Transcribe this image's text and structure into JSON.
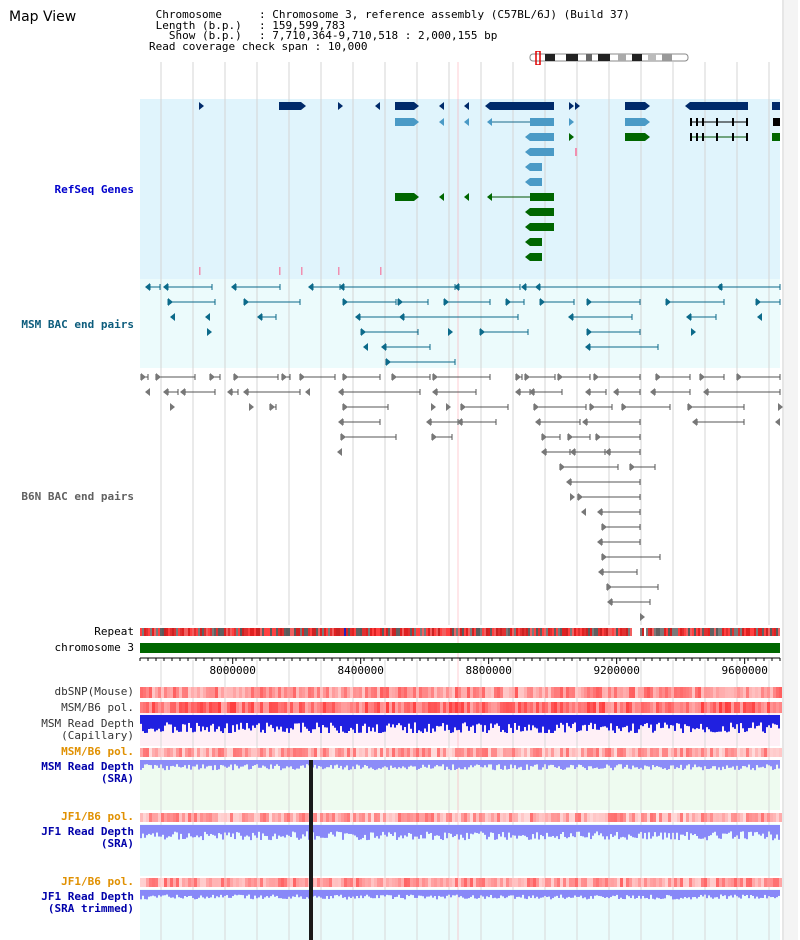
{
  "title": "Map View",
  "info": [
    {
      "key": "Chromosome",
      "value": "Chromosome 3, reference assembly (C57BL/6J) (Build 37)"
    },
    {
      "key": "Length (b.p.)",
      "value": "159,599,783"
    },
    {
      "key": "Show (b.p.)",
      "value": "7,710,364-9,710,518 : 2,000,155 bp"
    },
    {
      "key": "Read coverage check span",
      "value": "10,000"
    }
  ],
  "view": {
    "start": 7710364,
    "end": 9710518
  },
  "axis": {
    "ticks": [
      8000000,
      8400000,
      8800000,
      9200000,
      9600000
    ],
    "labels": [
      "8000000",
      "8400000",
      "8800000",
      "9200000",
      "9600000"
    ]
  },
  "tracks": {
    "refseq": {
      "label": "RefSeq Genes",
      "color": "#0000cc",
      "bg": "#e0f4fc"
    },
    "msm_bac": {
      "label": "MSM BAC end pairs",
      "color": "#0c5c7c",
      "bg": "#ecfbfc"
    },
    "b6n_bac": {
      "label": "B6N BAC end pairs",
      "color": "#606060",
      "bg": "#ffffff"
    },
    "repeat": {
      "label": "Repeat",
      "color": "#000000"
    },
    "chromosome": {
      "label": "chromosome 3",
      "color": "#000000",
      "bar": "#006600"
    },
    "dbsnp": {
      "label": "dbSNP(Mouse)",
      "color": "#000000"
    },
    "msm_b6_pol_1": {
      "label": "MSM/B6 pol.",
      "color": "#000000"
    },
    "msm_read_depth_cap": {
      "label_line1": "MSM Read Depth",
      "label_line2": "(Capillary)",
      "color": "#000000"
    },
    "msm_b6_pol_2": {
      "label": "MSM/B6 pol.",
      "color": "#e09000"
    },
    "msm_read_depth_sra": {
      "label_line1": "MSM Read Depth",
      "label_line2": "(SRA)",
      "color": "#0000aa"
    },
    "jf1_b6_pol_1": {
      "label": "JF1/B6 pol.",
      "color": "#e09000"
    },
    "jf1_read_depth_sra": {
      "label_line1": "JF1 Read Depth",
      "label_line2": "(SRA)",
      "color": "#0000aa"
    },
    "jf1_b6_pol_2": {
      "label": "JF1/B6 pol.",
      "color": "#e09000"
    },
    "jf1_read_depth_trim": {
      "label_line1": "JF1 Read Depth",
      "label_line2": "(SRA trimmed)",
      "color": "#0000aa"
    }
  },
  "colors": {
    "gene_dark": "#002a6a",
    "gene_mid": "#4a9ac6",
    "gene_green": "#006600",
    "grid": "#c8c8c8",
    "highlight": "#ff9aa8"
  }
}
